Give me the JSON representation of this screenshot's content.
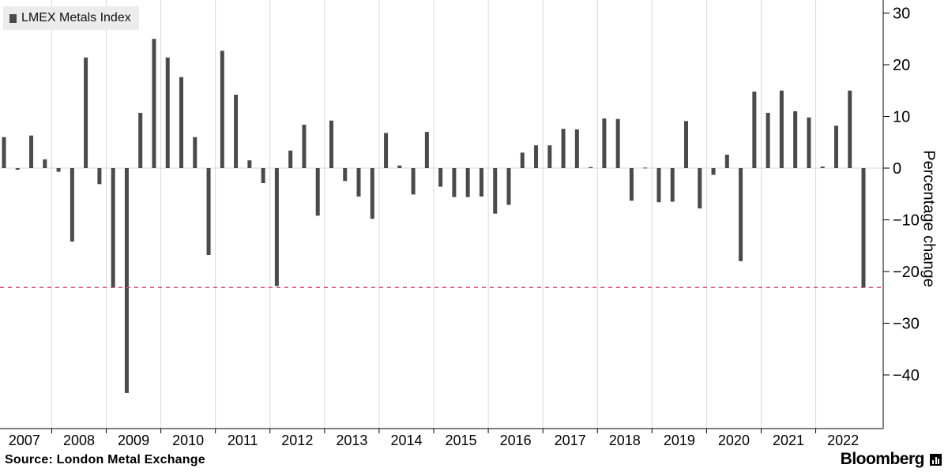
{
  "legend": {
    "label": "LMEX Metals Index"
  },
  "footer": {
    "source": "Source: London Metal Exchange",
    "brand": "Bloomberg"
  },
  "colors": {
    "bar": "#4a4a4a",
    "reference_line": "#e0457b",
    "grid": "#d8d8d8",
    "axis": "#000000"
  },
  "chart_data": {
    "type": "bar",
    "title": "",
    "ylabel": "Percentage change",
    "ylim": [
      -50,
      31
    ],
    "yticks": [
      30,
      20,
      10,
      0,
      -10,
      -20,
      -30,
      -40
    ],
    "year_labels": [
      "2007",
      "2008",
      "2009",
      "2010",
      "2011",
      "2012",
      "2013",
      "2014",
      "2015",
      "2016",
      "2017",
      "2018",
      "2019",
      "2020",
      "2021",
      "2022"
    ],
    "period": "quarterly",
    "reference_line": -23.1,
    "series": [
      {
        "name": "LMEX Metals Index",
        "values": [
          6.0,
          -0.3,
          6.3,
          1.7,
          -0.7,
          -14.2,
          21.4,
          -3.1,
          -23.1,
          -43.5,
          10.7,
          25.0,
          21.4,
          17.6,
          6.0,
          -16.8,
          22.7,
          14.2,
          1.5,
          -2.9,
          -22.8,
          3.4,
          8.4,
          -9.2,
          9.2,
          -2.5,
          -5.5,
          -9.8,
          6.8,
          0.5,
          -5.1,
          7.0,
          -3.6,
          -5.6,
          -5.6,
          -5.5,
          -8.8,
          -7.1,
          3.0,
          4.4,
          4.4,
          7.6,
          7.5,
          0.2,
          9.6,
          9.5,
          -6.3,
          0.1,
          -6.6,
          -6.5,
          9.1,
          -7.8,
          -1.3,
          2.6,
          -18.0,
          14.8,
          10.7,
          15.0,
          11.0,
          9.8,
          0.3,
          8.2,
          15.0,
          -23.1
        ]
      }
    ]
  }
}
